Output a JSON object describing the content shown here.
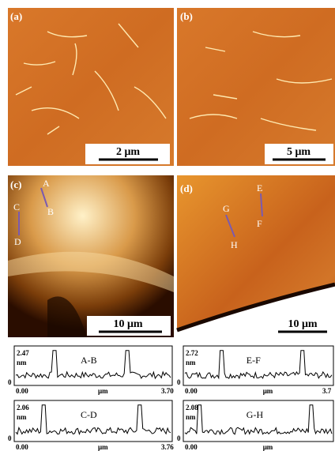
{
  "panels": [
    {
      "label": "(a)",
      "scale_bar": "2 μm"
    },
    {
      "label": "(b)",
      "scale_bar": "5 μm"
    },
    {
      "label": "(c)",
      "scale_bar": "10 μm",
      "markers": [
        "A",
        "B",
        "C",
        "D"
      ]
    },
    {
      "label": "(d)",
      "scale_bar": "10 μm",
      "markers": [
        "E",
        "F",
        "G",
        "H"
      ]
    }
  ],
  "profiles": [
    {
      "ymax": "2.47",
      "yunit": "nm",
      "title": "A-B",
      "ymin": "0",
      "xmin": "0.00",
      "xunit": "μm",
      "xmax": "3.70"
    },
    {
      "ymax": "2.72",
      "yunit": "nm",
      "title": "E-F",
      "ymin": "0",
      "xmin": "0.00",
      "xunit": "μm",
      "xmax": "3.7"
    },
    {
      "ymax": "2.06",
      "yunit": "nm",
      "title": "C-D",
      "ymin": "0",
      "xmin": "0.00",
      "xunit": "μm",
      "xmax": "3.76"
    },
    {
      "ymax": "2.08",
      "yunit": "nm",
      "title": "G-H",
      "ymin": "0",
      "xmin": "0.00",
      "xunit": "μm"
    }
  ]
}
